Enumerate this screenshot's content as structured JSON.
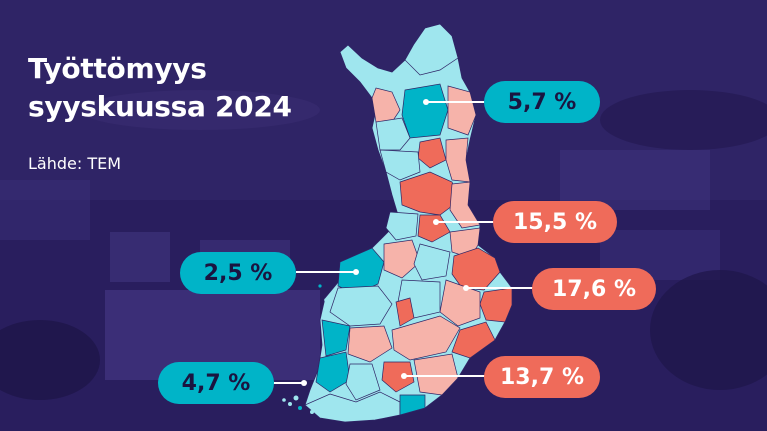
{
  "title_line1": "Työttömyys",
  "title_line2": "syyskuussa 2024",
  "source": "Lähde: TEM",
  "colors": {
    "low": "#00b4c8",
    "low_light": "#9fe6ee",
    "high": "#ef6b5a",
    "high_light": "#f6b3aa",
    "background": "#2f2466"
  },
  "callouts": [
    {
      "value": "5,7 %",
      "level": "low"
    },
    {
      "value": "15,5 %",
      "level": "high"
    },
    {
      "value": "2,5 %",
      "level": "low"
    },
    {
      "value": "17,6 %",
      "level": "high"
    },
    {
      "value": "4,7 %",
      "level": "low"
    },
    {
      "value": "13,7 %",
      "level": "high"
    }
  ]
}
